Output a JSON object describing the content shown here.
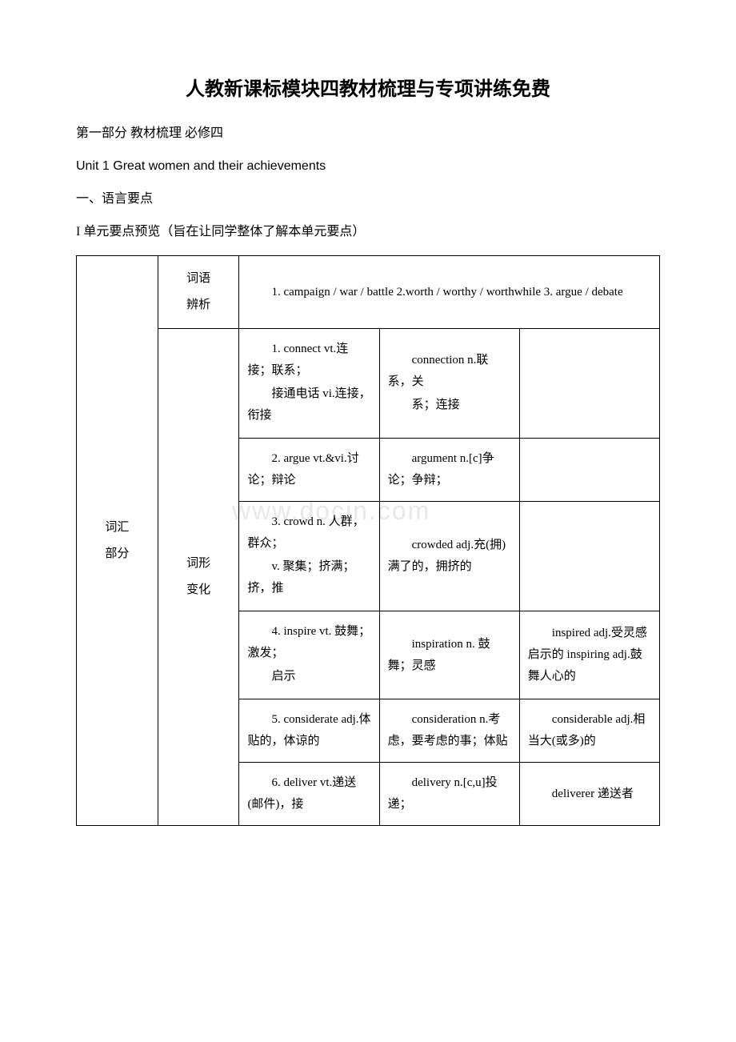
{
  "title": "人教新课标模块四教材梳理与专项讲练免费",
  "subtitle": "第一部分 教材梳理 必修四",
  "unit_title": "Unit 1 Great women and their achievements",
  "section_heading": "一、语言要点",
  "point_heading": "I 单元要点预览（旨在让同学整体了解本单元要点）",
  "watermark": "www.docin.com",
  "table": {
    "section_label_1": "词汇",
    "section_label_2": "部分",
    "subsection1_label_1": "词语",
    "subsection1_label_2": "辨析",
    "subsection1_content": "1. campaign / war / battle 2.worth / worthy / worthwhile 3. argue / debate",
    "subsection2_label_1": "词形",
    "subsection2_label_2": "变化",
    "rows": [
      {
        "word_p1": "1. connect vt.连接；联系；",
        "word_p2": "接通电话 vi.连接，衔接",
        "form1_p1": "connection n.联系，关",
        "form1_p2": "系；连接",
        "form2": ""
      },
      {
        "word_p1": "2. argue vt.&vi.讨论；辩论",
        "form1_p1": "argument n.[c]争论；争辩；",
        "form2": ""
      },
      {
        "word_p1": "3. crowd n. 人群，群众；",
        "word_p2": "v. 聚集；挤满；挤，推",
        "form1_p1": "crowded adj.充(拥)满了的，拥挤的",
        "form2": ""
      },
      {
        "word_p1": "4. inspire vt. 鼓舞；激发；",
        "word_p2": "启示",
        "form1_p1": "inspiration n. 鼓舞；灵感",
        "form2": "inspired adj.受灵感启示的 inspiring adj.鼓舞人心的"
      },
      {
        "word_p1": "5. considerate adj.体贴的，体谅的",
        "form1_p1": "consideration n.考虑，要考虑的事；体贴",
        "form2": "considerable adj.相当大(或多)的"
      },
      {
        "word_p1": "6. deliver vt.递送(邮件)，接",
        "form1_p1": "delivery n.[c,u]投递；",
        "form2": "deliverer 递送者"
      }
    ]
  }
}
